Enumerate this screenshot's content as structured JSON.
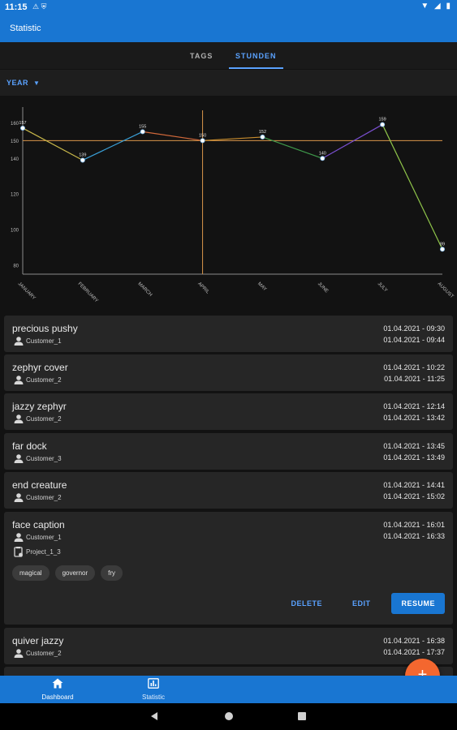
{
  "status_bar": {
    "time": "11:15",
    "notification_icons": "⚠ ⛨",
    "system_icons": "▼ ◢ ▮"
  },
  "app": {
    "title": "Statistic"
  },
  "tabs": [
    {
      "label": "TAGS",
      "active": false
    },
    {
      "label": "STUNDEN",
      "active": true
    }
  ],
  "filter": {
    "selected": "YEAR"
  },
  "chart_data": {
    "type": "line",
    "categories": [
      "JANUARY",
      "FEBRUARY",
      "MARCH",
      "APRIL",
      "MAY",
      "JUNE",
      "JULY",
      "AUGUST"
    ],
    "values": [
      157,
      139,
      155,
      150,
      152,
      140,
      159,
      89
    ],
    "value_labels": [
      "157",
      "139",
      "155",
      "150",
      "152",
      "140",
      "159",
      "89"
    ],
    "yticks": [
      80,
      100,
      120,
      140,
      150,
      160
    ],
    "ytick_labels": [
      "80",
      "100",
      "120",
      "140",
      "150",
      "160"
    ],
    "ylim": [
      75,
      167
    ],
    "segment_colors": [
      "#c9b84a",
      "#3aa0d8",
      "#d0683a",
      "#c98d2e",
      "#3f9a4b",
      "#7a4fd0",
      "#8fc54a"
    ],
    "reference_line": {
      "value": 150,
      "color": "#d9964a"
    },
    "marker_category": "APRIL",
    "axis_color": "#8a8a8a",
    "grid": false,
    "legend": "none"
  },
  "entries": [
    {
      "name": "precious pushy",
      "customer": "Customer_1",
      "start": "01.04.2021 - 09:30",
      "end": "01.04.2021 - 09:44"
    },
    {
      "name": "zephyr cover",
      "customer": "Customer_2",
      "start": "01.04.2021 - 10:22",
      "end": "01.04.2021 - 11:25"
    },
    {
      "name": "jazzy zephyr",
      "customer": "Customer_2",
      "start": "01.04.2021 - 12:14",
      "end": "01.04.2021 - 13:42"
    },
    {
      "name": "far dock",
      "customer": "Customer_3",
      "start": "01.04.2021 - 13:45",
      "end": "01.04.2021 - 13:49"
    },
    {
      "name": "end creature",
      "customer": "Customer_2",
      "start": "01.04.2021 - 14:41",
      "end": "01.04.2021 - 15:02"
    },
    {
      "name": "face caption",
      "customer": "Customer_1",
      "project": "Project_1_3",
      "start": "01.04.2021 - 16:01",
      "end": "01.04.2021 - 16:33",
      "tags": [
        "magical",
        "governor",
        "fry"
      ],
      "actions": {
        "delete": "DELETE",
        "edit": "EDIT",
        "resume": "RESUME"
      }
    },
    {
      "name": "quiver jazzy",
      "customer": "Customer_2",
      "start": "01.04.2021 - 16:38",
      "end": "01.04.2021 - 17:37"
    }
  ],
  "fab": {
    "label": "+"
  },
  "bottom_nav": [
    {
      "label": "Dashboard",
      "icon": "home-icon",
      "active": true
    },
    {
      "label": "Statistic",
      "icon": "chart-icon",
      "active": false
    }
  ],
  "colors": {
    "primary": "#1976d2",
    "accent": "#5aa2ff",
    "fab": "#f4672f",
    "background": "#121212",
    "card": "#262626"
  }
}
